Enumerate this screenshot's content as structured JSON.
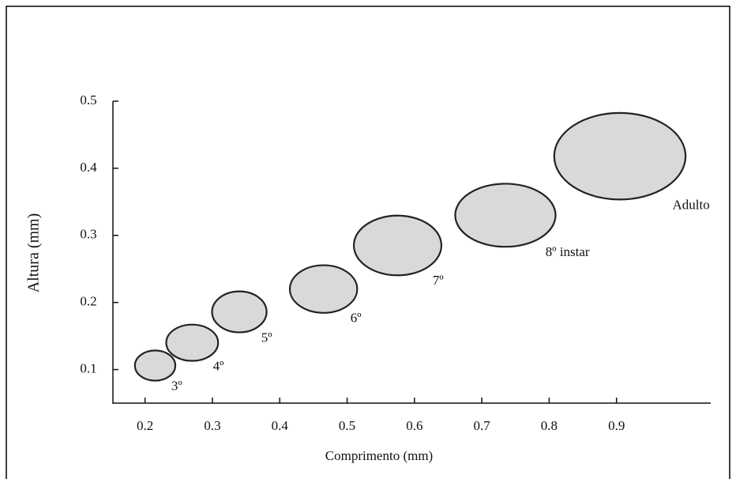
{
  "chart_data": {
    "type": "scatter",
    "x_label": "Comprimento (mm)",
    "y_label": "Altura (mm)",
    "labels": [
      "3º",
      "4º",
      "5º",
      "6º",
      "7º",
      "8º instar",
      "Adulto"
    ],
    "x": [
      0.215,
      0.27,
      0.34,
      0.465,
      0.575,
      0.735,
      0.905
    ],
    "values": [
      0.106,
      0.14,
      0.186,
      0.22,
      0.285,
      0.33,
      0.418
    ],
    "width": [
      0.06,
      0.077,
      0.081,
      0.1,
      0.13,
      0.149,
      0.195
    ],
    "height": [
      0.045,
      0.054,
      0.061,
      0.071,
      0.089,
      0.094,
      0.129
    ],
    "color": "#d9d9d9",
    "xlim": [
      0.15,
      1.0
    ],
    "xticks": [
      0.2,
      0.3,
      0.4,
      0.5,
      0.6,
      0.7,
      0.8,
      0.9
    ],
    "ylim": [
      0.05,
      0.5
    ],
    "yticks": [
      0.1,
      0.2,
      0.3,
      0.4,
      0.5
    ]
  }
}
